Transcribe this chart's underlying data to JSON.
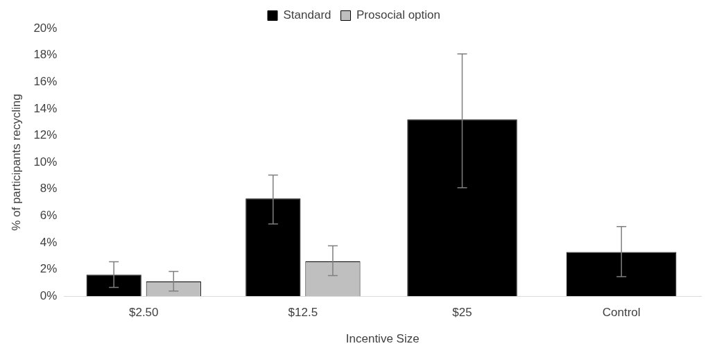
{
  "chart_data": {
    "type": "bar",
    "xlabel": "Incentive Size",
    "ylabel": "% of participants recycling",
    "categories": [
      "$2.50",
      "$12.5",
      "$25",
      "Control"
    ],
    "series": [
      {
        "name": "Standard",
        "color": "#000000",
        "values": [
          1.6,
          7.3,
          13.2,
          3.3
        ],
        "errors": [
          [
            0.66,
            2.57
          ],
          [
            5.4,
            9.05
          ],
          [
            8.1,
            18.1
          ],
          [
            1.46,
            5.2
          ]
        ]
      },
      {
        "name": "Prosocial option",
        "color": "#bfbfbf",
        "values": [
          1.1,
          2.6,
          null,
          null
        ],
        "errors": [
          [
            0.39,
            1.85
          ],
          [
            1.54,
            3.77
          ],
          null,
          null
        ]
      }
    ],
    "ylim": [
      0,
      20
    ],
    "yticks": [
      {
        "value": 0,
        "label": "0%"
      },
      {
        "value": 2,
        "label": "2%"
      },
      {
        "value": 4,
        "label": "4%"
      },
      {
        "value": 6,
        "label": "6%"
      },
      {
        "value": 8,
        "label": "8%"
      },
      {
        "value": 10,
        "label": "10%"
      },
      {
        "value": 12,
        "label": "12%"
      },
      {
        "value": 14,
        "label": "14%"
      },
      {
        "value": 16,
        "label": "16%"
      },
      {
        "value": 18,
        "label": "18%"
      },
      {
        "value": 20,
        "label": "20%"
      }
    ],
    "grid": false,
    "legend": "top"
  }
}
